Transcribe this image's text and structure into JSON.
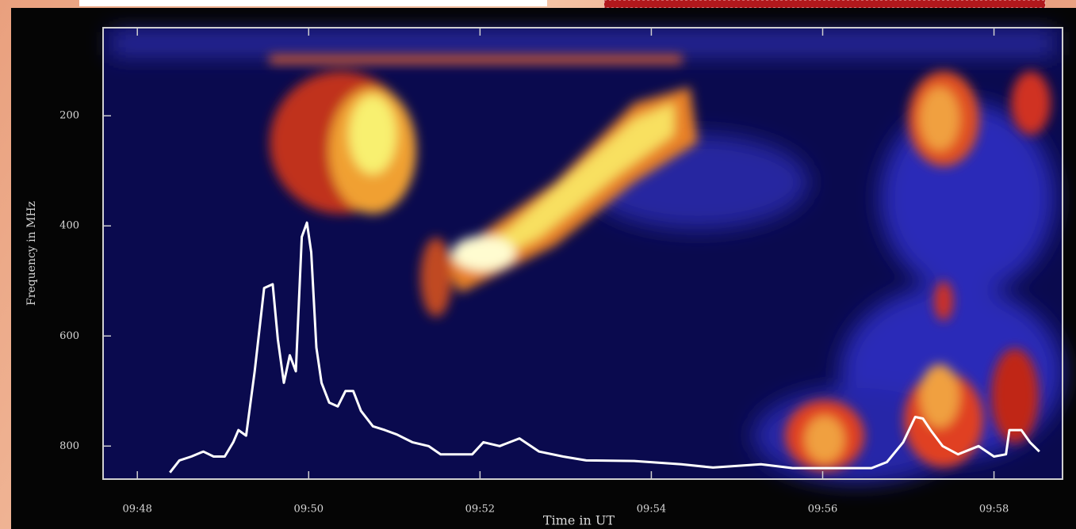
{
  "chart_data": {
    "type": "line",
    "x_label": "Time in UT",
    "y_label": "Frequency in MHz",
    "xlim": [
      47.6,
      58.8
    ],
    "xticks": [
      {
        "value": 48,
        "label": "09:48"
      },
      {
        "value": 50,
        "label": "09:50"
      },
      {
        "value": 52,
        "label": "09:52"
      },
      {
        "value": 54,
        "label": "09:54"
      },
      {
        "value": 56,
        "label": "09:56"
      },
      {
        "value": 58,
        "label": "09:58"
      }
    ],
    "ylim": [
      40,
      860
    ],
    "y_inverted": true,
    "yticks": [
      200,
      400,
      600,
      800
    ],
    "series": [
      {
        "color": "#ffffff",
        "x": [
          48.38,
          48.49,
          48.63,
          48.77,
          48.89,
          49.02,
          49.12,
          49.18,
          49.27,
          49.37,
          49.48,
          49.58,
          49.64,
          49.71,
          49.78,
          49.85,
          49.92,
          49.98,
          50.03,
          50.09,
          50.15,
          50.24,
          50.34,
          50.43,
          50.52,
          50.61,
          50.75,
          50.89,
          51.03,
          51.21,
          51.4,
          51.54,
          51.72,
          51.91,
          52.04,
          52.23,
          52.46,
          52.69,
          52.97,
          53.24,
          53.8,
          54.35,
          54.72,
          55.28,
          55.65,
          56.2,
          56.57,
          56.75,
          56.94,
          57.08,
          57.17,
          57.26,
          57.4,
          57.58,
          57.82,
          58.0,
          58.14,
          58.18,
          58.32,
          58.42,
          58.53
        ],
        "values": [
          848,
          826,
          819,
          810,
          819,
          819,
          793,
          771,
          781,
          664,
          513,
          506,
          606,
          685,
          635,
          664,
          420,
          394,
          448,
          621,
          685,
          721,
          728,
          700,
          700,
          736,
          764,
          771,
          779,
          793,
          800,
          815,
          815,
          815,
          793,
          800,
          786,
          810,
          819,
          826,
          827,
          833,
          839,
          833,
          840,
          840,
          840,
          829,
          793,
          747,
          750,
          771,
          800,
          815,
          800,
          819,
          815,
          771,
          771,
          793,
          810
        ]
      }
    ]
  }
}
